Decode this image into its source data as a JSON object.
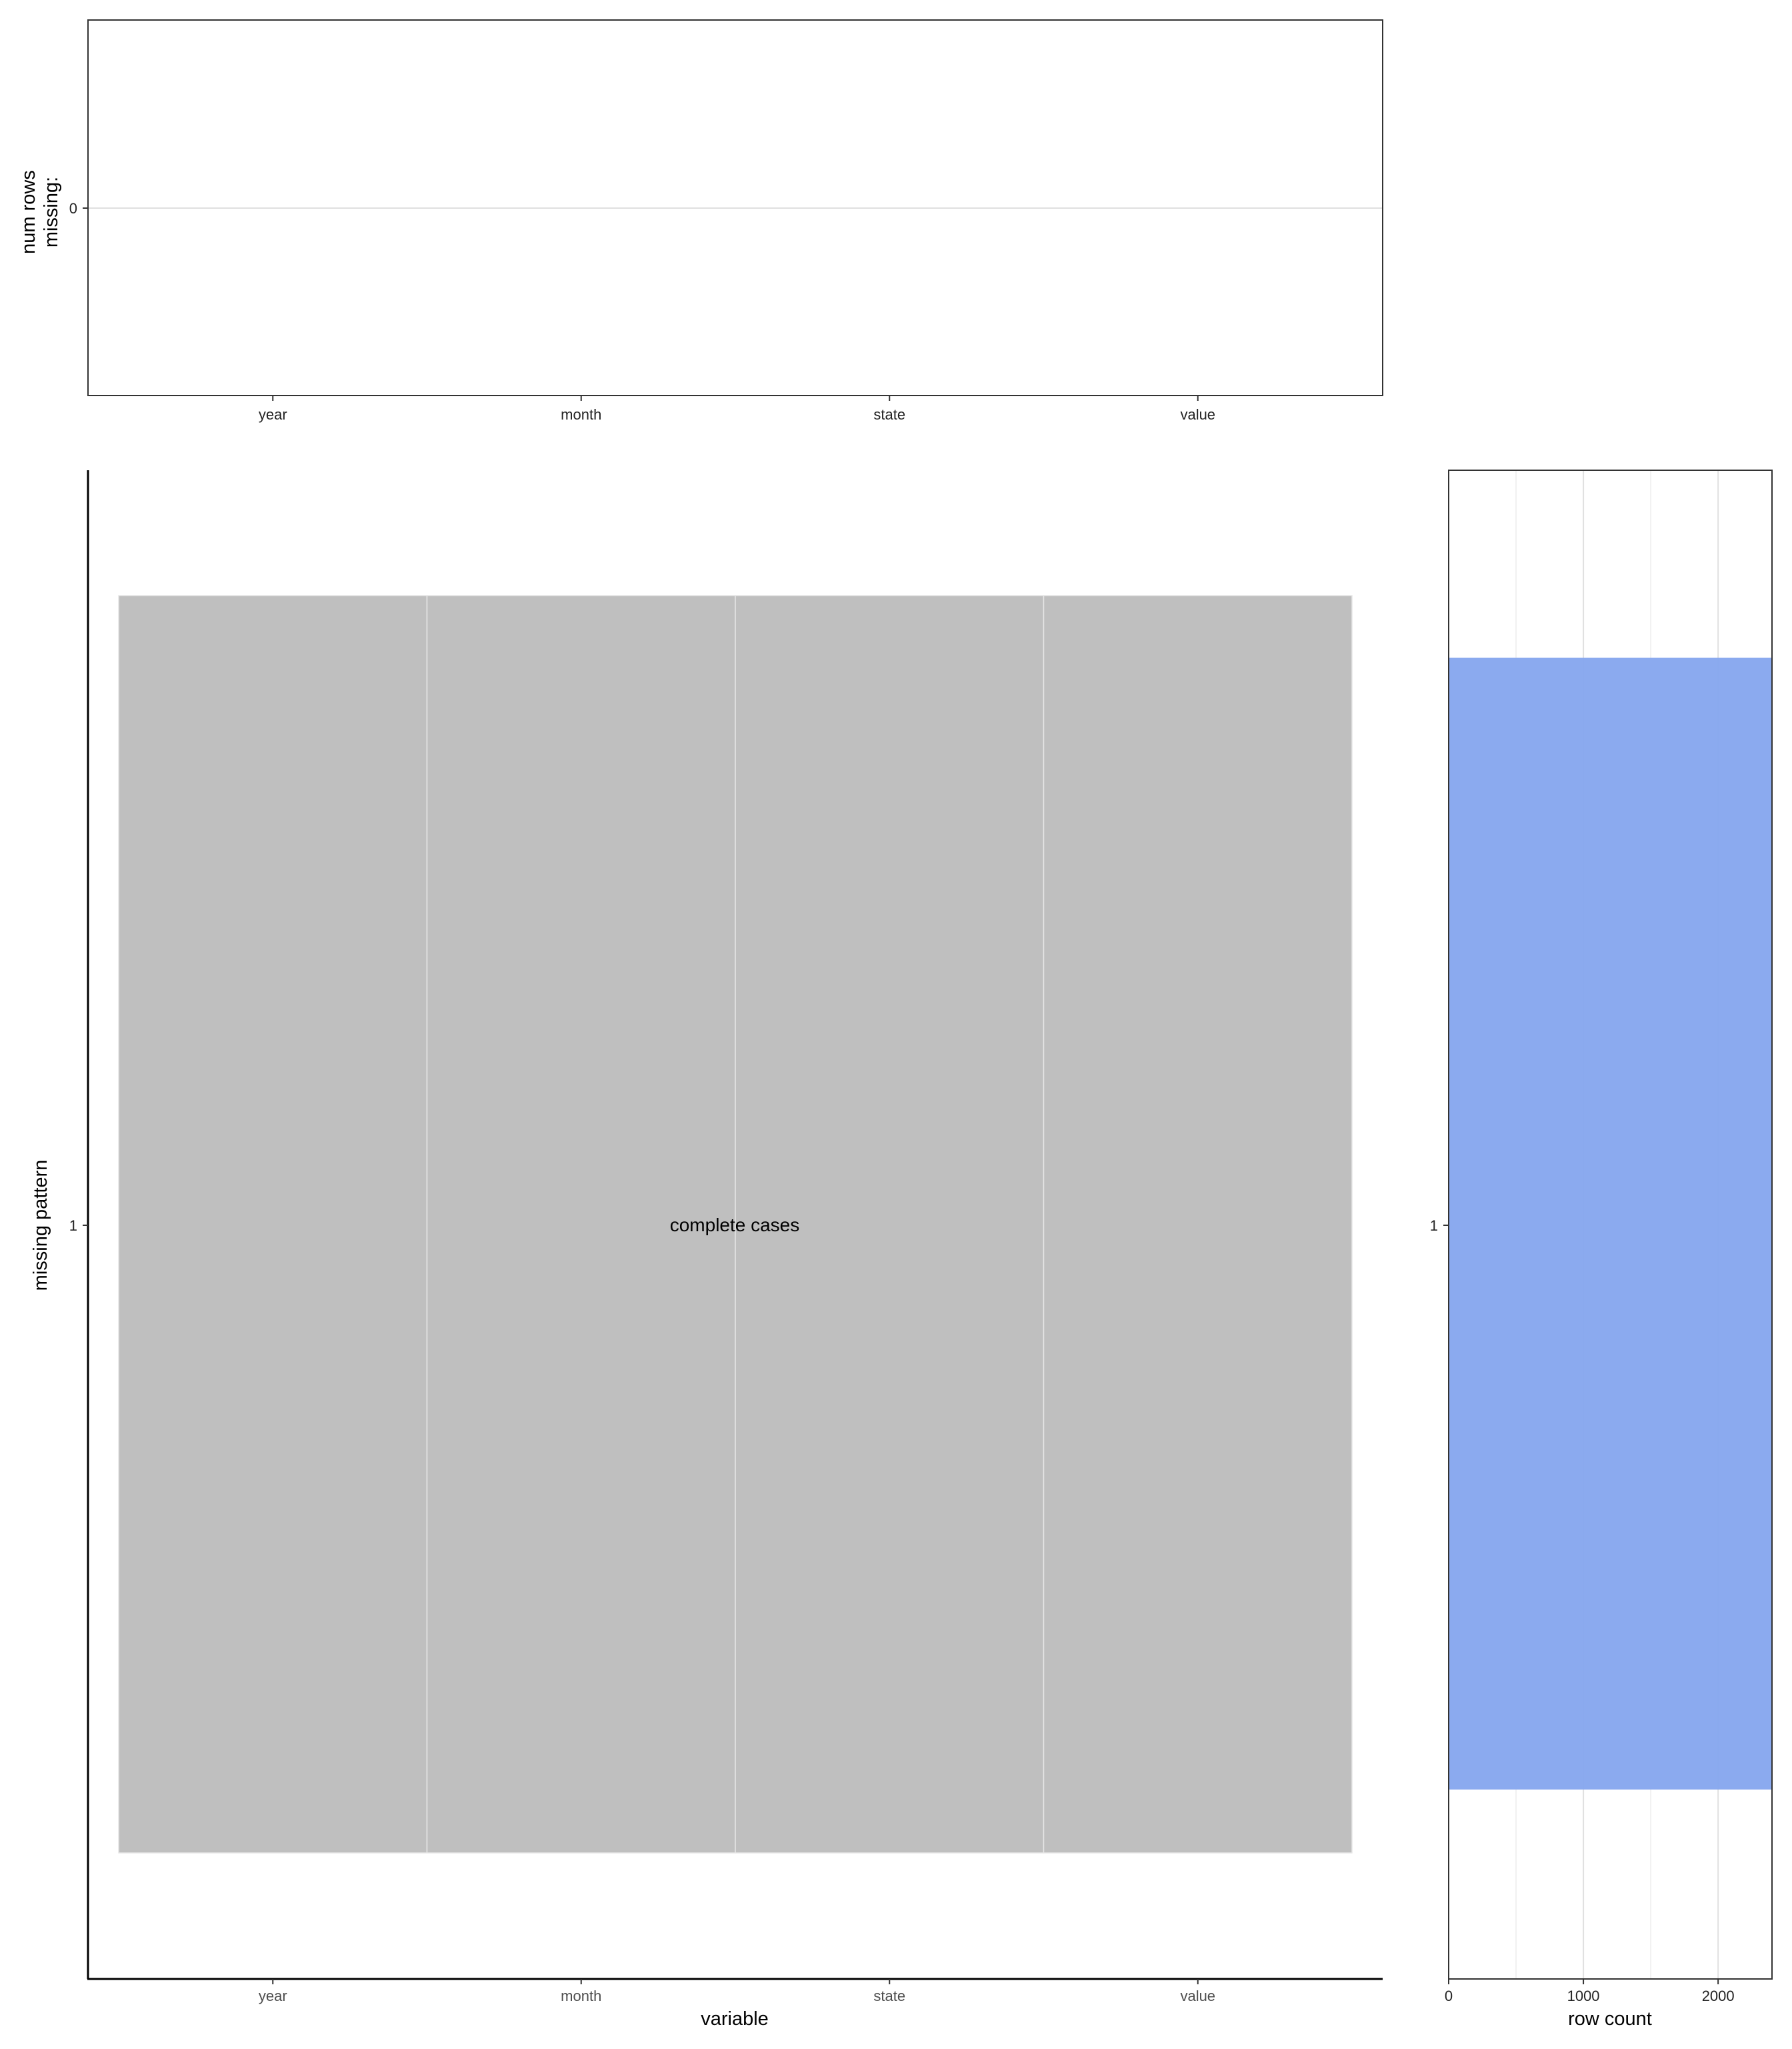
{
  "chart_data": [
    {
      "type": "bar",
      "panel": "top",
      "categories": [
        "year",
        "month",
        "state",
        "value"
      ],
      "values": [
        0,
        0,
        0,
        0
      ],
      "ylabel_lines": [
        "num rows",
        "missing:"
      ],
      "yticks": [
        "0"
      ],
      "grid": "horizontal at 0"
    },
    {
      "type": "heatmap",
      "panel": "main",
      "xlabel": "variable",
      "ylabel": "missing pattern",
      "categories": [
        "year",
        "month",
        "state",
        "value"
      ],
      "patterns": [
        "1"
      ],
      "cells": [
        {
          "pattern": "1",
          "variable": "year",
          "missing": false
        },
        {
          "pattern": "1",
          "variable": "month",
          "missing": false
        },
        {
          "pattern": "1",
          "variable": "state",
          "missing": false
        },
        {
          "pattern": "1",
          "variable": "value",
          "missing": false
        }
      ],
      "annotation": "complete cases"
    },
    {
      "type": "bar",
      "panel": "right",
      "orientation": "horizontal",
      "categories": [
        "1"
      ],
      "values": [
        2400
      ],
      "xlabel": "row count",
      "xticks": [
        0,
        1000,
        2000
      ],
      "xlim": [
        0,
        2400
      ],
      "grid": true
    }
  ],
  "colors": {
    "complete_cell": "#bfbfbf",
    "cell_separator": "#e6e6e6",
    "row_count_bar": "#87a7ee",
    "gridline": "#e0e0e0",
    "frame": "#333333"
  }
}
